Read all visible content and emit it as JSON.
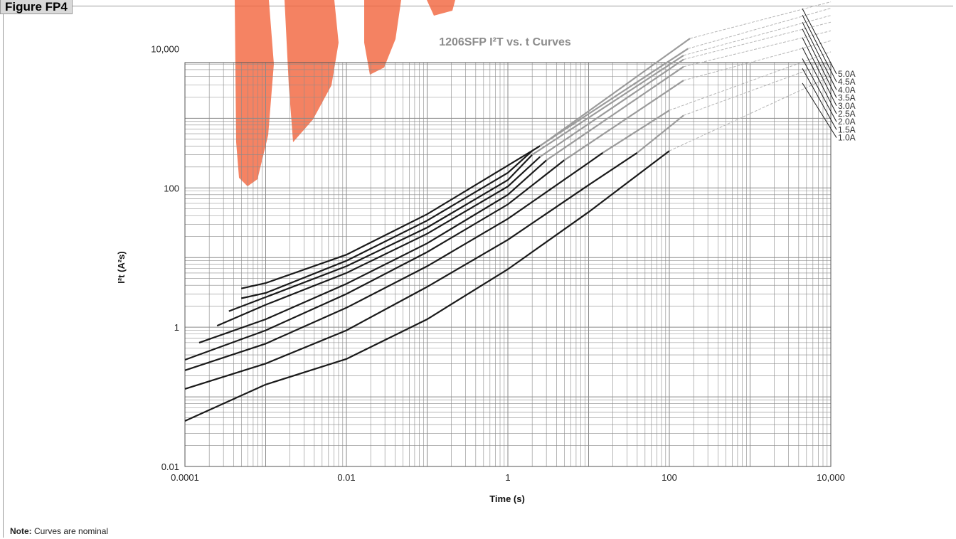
{
  "figure_label": "Figure FP4",
  "note": {
    "bold": "Note:",
    "text": " Curves are nominal"
  },
  "chart_data": {
    "type": "line",
    "title": "1206SFP I²T vs. t Curves",
    "xlabel": "Time (s)",
    "ylabel": "I²t (A²s)",
    "x_scale": "log",
    "y_scale": "log",
    "xlim": [
      0.0001,
      10000
    ],
    "ylim": [
      0.01,
      10000
    ],
    "x_ticks": [
      {
        "value": 0.0001,
        "label": "0.0001"
      },
      {
        "value": 0.01,
        "label": "0.01"
      },
      {
        "value": 1,
        "label": "1"
      },
      {
        "value": 100,
        "label": "100"
      },
      {
        "value": 10000,
        "label": "10,000"
      }
    ],
    "y_ticks": [
      {
        "value": 0.01,
        "label": "0.01"
      },
      {
        "value": 1,
        "label": "1"
      },
      {
        "value": 100,
        "label": "100"
      },
      {
        "value": 10000,
        "label": "10,000"
      }
    ],
    "grid": true,
    "colors": {
      "solid": "#1a1a1a",
      "extension": "#9b9b9b",
      "dashed": "#b5b5b5",
      "grid": "#8a8a8a",
      "watermark": "#f2643c"
    },
    "series": [
      {
        "name": "1.0A",
        "solid": [
          [
            0.0001,
            0.045
          ],
          [
            0.001,
            0.15
          ],
          [
            0.01,
            0.35
          ],
          [
            0.1,
            1.3
          ],
          [
            1,
            6.8
          ],
          [
            10,
            45
          ],
          [
            100,
            340
          ]
        ],
        "ext": [],
        "dash": [
          [
            100,
            340
          ],
          [
            10000,
            4000
          ]
        ]
      },
      {
        "name": "1.5A",
        "solid": [
          [
            0.0001,
            0.13
          ],
          [
            0.001,
            0.3
          ],
          [
            0.01,
            0.9
          ],
          [
            0.1,
            3.8
          ],
          [
            1,
            18
          ],
          [
            10,
            110
          ],
          [
            40,
            320
          ]
        ],
        "ext": [
          [
            40,
            320
          ],
          [
            150,
            1100
          ]
        ],
        "dash": [
          [
            150,
            1100
          ],
          [
            10000,
            6500
          ]
        ]
      },
      {
        "name": "2.0A",
        "solid": [
          [
            0.0001,
            0.24
          ],
          [
            0.001,
            0.58
          ],
          [
            0.01,
            1.9
          ],
          [
            0.1,
            7.5
          ],
          [
            1,
            36
          ],
          [
            10,
            230
          ],
          [
            15,
            320
          ]
        ],
        "ext": [
          [
            15,
            320
          ],
          [
            100,
            1300
          ]
        ],
        "dash": [
          [
            100,
            1300
          ],
          [
            10000,
            9000
          ]
        ]
      },
      {
        "name": "2.5A",
        "solid": [
          [
            0.0001,
            0.34
          ],
          [
            0.001,
            0.9
          ],
          [
            0.01,
            3
          ],
          [
            0.1,
            12
          ],
          [
            1,
            58
          ],
          [
            5,
            250
          ]
        ],
        "ext": [
          [
            5,
            250
          ],
          [
            150,
            3500
          ]
        ],
        "dash": [
          [
            150,
            3500
          ],
          [
            10000,
            13000
          ]
        ]
      },
      {
        "name": "3.0A",
        "solid": [
          [
            0.00015,
            0.6
          ],
          [
            0.001,
            1.3
          ],
          [
            0.01,
            4.2
          ],
          [
            0.1,
            16
          ],
          [
            1,
            80
          ],
          [
            3,
            250
          ]
        ],
        "ext": [
          [
            3,
            250
          ],
          [
            150,
            5500
          ]
        ],
        "dash": [
          [
            150,
            5500
          ],
          [
            10000,
            18000
          ]
        ]
      },
      {
        "name": "3.5A",
        "solid": [
          [
            0.00025,
            1.05
          ],
          [
            0.001,
            2.1
          ],
          [
            0.01,
            6
          ],
          [
            0.1,
            22
          ],
          [
            1,
            105
          ],
          [
            2.5,
            280
          ]
        ],
        "ext": [
          [
            2.5,
            280
          ],
          [
            150,
            7000
          ]
        ],
        "dash": [
          [
            150,
            7000
          ],
          [
            10000,
            24000
          ]
        ]
      },
      {
        "name": "4.0A",
        "solid": [
          [
            0.00035,
            1.7
          ],
          [
            0.001,
            2.7
          ],
          [
            0.01,
            7.5
          ],
          [
            0.1,
            27
          ],
          [
            1,
            130
          ],
          [
            2,
            300
          ]
        ],
        "ext": [
          [
            2,
            300
          ],
          [
            150,
            8000
          ]
        ],
        "dash": [
          [
            150,
            8000
          ],
          [
            10000,
            30000
          ]
        ]
      },
      {
        "name": "4.5A",
        "solid": [
          [
            0.0005,
            2.6
          ],
          [
            0.001,
            3.1
          ],
          [
            0.01,
            9
          ],
          [
            0.1,
            34
          ],
          [
            1,
            165
          ],
          [
            2,
            340
          ]
        ],
        "ext": [
          [
            2,
            340
          ],
          [
            170,
            10000
          ]
        ],
        "dash": [
          [
            170,
            10000
          ],
          [
            10000,
            38000
          ]
        ]
      },
      {
        "name": "5.0A",
        "solid": [
          [
            0.0005,
            3.6
          ],
          [
            0.001,
            4.3
          ],
          [
            0.01,
            11
          ],
          [
            0.1,
            42
          ],
          [
            1,
            210
          ],
          [
            2.5,
            400
          ]
        ],
        "ext": [
          [
            2.5,
            400
          ],
          [
            180,
            14000
          ]
        ],
        "dash": [
          [
            180,
            14000
          ],
          [
            10000,
            47000
          ]
        ]
      }
    ]
  }
}
